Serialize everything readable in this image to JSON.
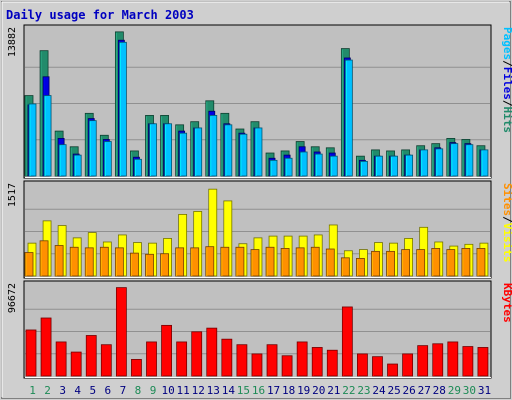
{
  "chart_data": {
    "type": "bar",
    "title": "Daily usage for March 2003",
    "colors": {
      "background": "#cfcfcf",
      "plot": "#c0c0c0",
      "title": "#0000c0",
      "hits": "#228b6b",
      "files": "#0000e0",
      "pages": "#00c0ff",
      "visits": "#ffff00",
      "sites": "#ff9000",
      "kbytes": "#ff0000",
      "weekend_day": "#1e8b57",
      "weekday": "#000080"
    },
    "days": [
      "1",
      "2",
      "3",
      "4",
      "5",
      "6",
      "7",
      "8",
      "9",
      "10",
      "11",
      "12",
      "13",
      "14",
      "15",
      "16",
      "17",
      "18",
      "19",
      "20",
      "21",
      "22",
      "23",
      "24",
      "25",
      "26",
      "27",
      "28",
      "29",
      "30",
      "31"
    ],
    "weekend_days": [
      1,
      2,
      8,
      9,
      15,
      16,
      22,
      23,
      29,
      30
    ],
    "panels": [
      {
        "id": "traffic",
        "max_label": "13882",
        "ymax": 13882,
        "legend": [
          {
            "text": "Pages",
            "color": "#00c0ff"
          },
          {
            "text": "/",
            "color": "#000000"
          },
          {
            "text": "Files",
            "color": "#0000e0"
          },
          {
            "text": "/",
            "color": "#000000"
          },
          {
            "text": "Hits",
            "color": "#228b6b"
          }
        ],
        "series": [
          {
            "name": "Hits",
            "color": "#228b6b",
            "values": [
              7700,
              12000,
              4300,
              2800,
              6000,
              3900,
              13800,
              2400,
              5800,
              5800,
              4900,
              5200,
              7200,
              6000,
              4500,
              5200,
              2200,
              2400,
              3300,
              2800,
              2700,
              12200,
              1900,
              2500,
              2400,
              2500,
              2900,
              3100,
              3600,
              3500,
              2900
            ]
          },
          {
            "name": "Files",
            "color": "#0000e0",
            "values": [
              6800,
              9500,
              3600,
              2100,
              5500,
              3500,
              13000,
              1800,
              5000,
              5000,
              4300,
              4600,
              6200,
              5000,
              4100,
              4600,
              1700,
              2000,
              2800,
              2300,
              2200,
              11300,
              1500,
              1900,
              1900,
              2000,
              2500,
              2700,
              3200,
              3100,
              2500
            ]
          },
          {
            "name": "Pages",
            "color": "#00c0ff",
            "values": [
              6900,
              7700,
              3000,
              2000,
              5300,
              3300,
              12800,
              1600,
              5000,
              5000,
              4100,
              4600,
              5800,
              4900,
              4000,
              4600,
              1500,
              1700,
              2300,
              2100,
              1900,
              11100,
              1400,
              1900,
              1900,
              2000,
              2500,
              2600,
              3100,
              3000,
              2500
            ]
          }
        ]
      },
      {
        "id": "visits",
        "max_label": "1517",
        "ymax": 1517,
        "legend": [
          {
            "text": "Sites",
            "color": "#ff9000"
          },
          {
            "text": "/",
            "color": "#000000"
          },
          {
            "text": "Visits",
            "color": "#ffff00"
          }
        ],
        "series": [
          {
            "name": "Visits",
            "color": "#ffff00",
            "values": [
              560,
              940,
              860,
              650,
              740,
              580,
              700,
              570,
              560,
              640,
              1050,
              1100,
              1480,
              1280,
              550,
              650,
              680,
              680,
              680,
              700,
              870,
              430,
              450,
              570,
              560,
              640,
              830,
              580,
              510,
              540,
              560
            ]
          },
          {
            "name": "Sites",
            "color": "#ff9000",
            "values": [
              400,
              600,
              520,
              490,
              480,
              490,
              480,
              390,
              370,
              380,
              480,
              480,
              500,
              490,
              490,
              450,
              490,
              470,
              480,
              490,
              460,
              310,
              300,
              420,
              420,
              450,
              450,
              470,
              450,
              470,
              470
            ]
          }
        ]
      },
      {
        "id": "kbytes",
        "max_label": "96672",
        "ymax": 96672,
        "legend": [
          {
            "text": "KBytes",
            "color": "#ff0000"
          }
        ],
        "series": [
          {
            "name": "KBytes",
            "color": "#ff0000",
            "values": [
              50000,
              63000,
              37000,
              26000,
              44000,
              34000,
              96000,
              18000,
              37000,
              55000,
              37000,
              48000,
              52000,
              40000,
              34000,
              24000,
              34000,
              22000,
              37000,
              31000,
              28000,
              75000,
              24000,
              21000,
              13000,
              24000,
              33000,
              35000,
              37000,
              32000,
              31000
            ]
          }
        ]
      }
    ]
  }
}
